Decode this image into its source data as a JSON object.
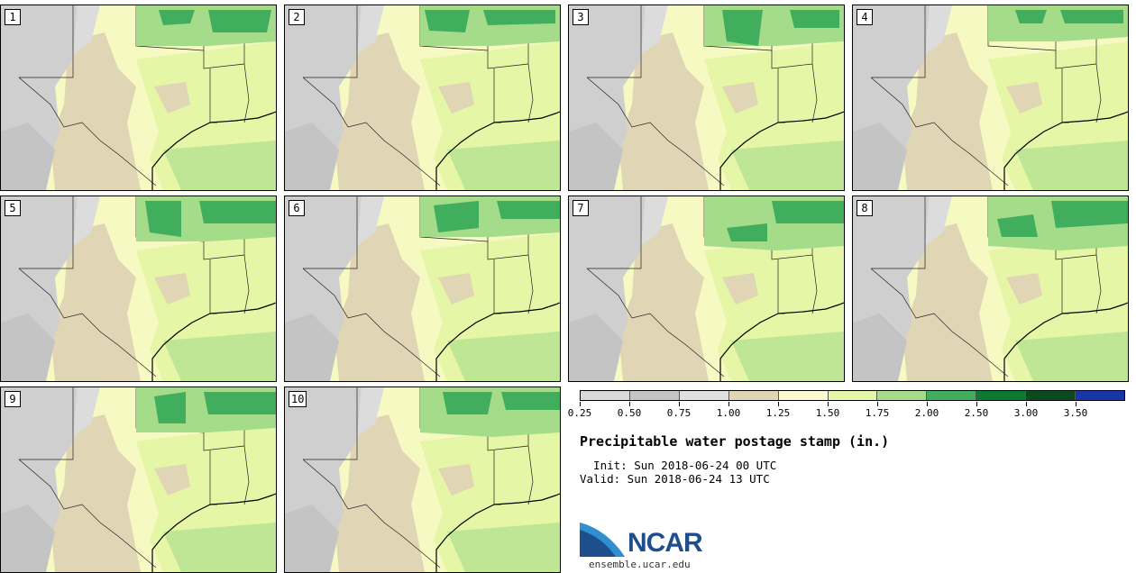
{
  "panels": [
    {
      "label": "1"
    },
    {
      "label": "2"
    },
    {
      "label": "3"
    },
    {
      "label": "4"
    },
    {
      "label": "5"
    },
    {
      "label": "6"
    },
    {
      "label": "7"
    },
    {
      "label": "8"
    },
    {
      "label": "9"
    },
    {
      "label": "10"
    }
  ],
  "colorbar": {
    "colors": [
      "#d9d9d9",
      "#c4c4c4",
      "#e0e0e0",
      "#e0d5b5",
      "#fbfbcf",
      "#e5f6a6",
      "#a5dc8a",
      "#41ae5e",
      "#0b7b33",
      "#0a4a1e",
      "#1736a8"
    ],
    "labels": [
      "0.25",
      "0.50",
      "0.75",
      "1.00",
      "1.25",
      "1.50",
      "1.75",
      "2.00",
      "2.50",
      "3.00",
      "3.50"
    ]
  },
  "title": "Precipitable water postage stamp (in.)",
  "init": "  Init: Sun 2018-06-24 00 UTC",
  "valid": "Valid: Sun 2018-06-24 13 UTC",
  "logo": {
    "text": "NCAR",
    "url": "ensemble.ucar.edu",
    "colors": {
      "blue": "#1f4e8c",
      "light_blue": "#2f8fd0"
    }
  }
}
